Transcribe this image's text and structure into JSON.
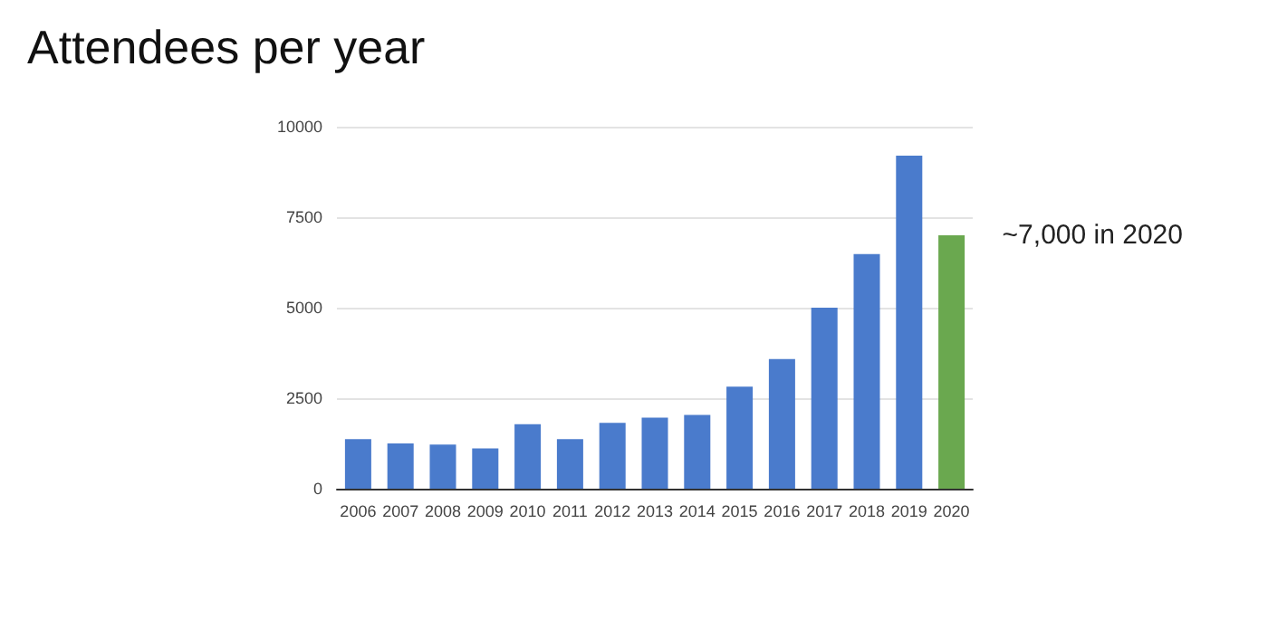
{
  "chart_data": {
    "type": "bar",
    "title": "Attendees per year",
    "categories": [
      "2006",
      "2007",
      "2008",
      "2009",
      "2010",
      "2011",
      "2012",
      "2013",
      "2014",
      "2015",
      "2016",
      "2017",
      "2018",
      "2019",
      "2020"
    ],
    "values": [
      1370,
      1250,
      1220,
      1110,
      1780,
      1370,
      1820,
      1960,
      2040,
      2820,
      3580,
      5000,
      6480,
      9200,
      7000
    ],
    "colors": [
      "#4a7bcc",
      "#4a7bcc",
      "#4a7bcc",
      "#4a7bcc",
      "#4a7bcc",
      "#4a7bcc",
      "#4a7bcc",
      "#4a7bcc",
      "#4a7bcc",
      "#4a7bcc",
      "#4a7bcc",
      "#4a7bcc",
      "#4a7bcc",
      "#4a7bcc",
      "#6aa84f"
    ],
    "ylim": [
      0,
      10000
    ],
    "yticks": [
      0,
      2500,
      5000,
      7500,
      10000
    ],
    "grid": "y",
    "annotations": [
      {
        "text": "~7,000 in 2020",
        "x": "2020",
        "y": 7000
      }
    ]
  }
}
